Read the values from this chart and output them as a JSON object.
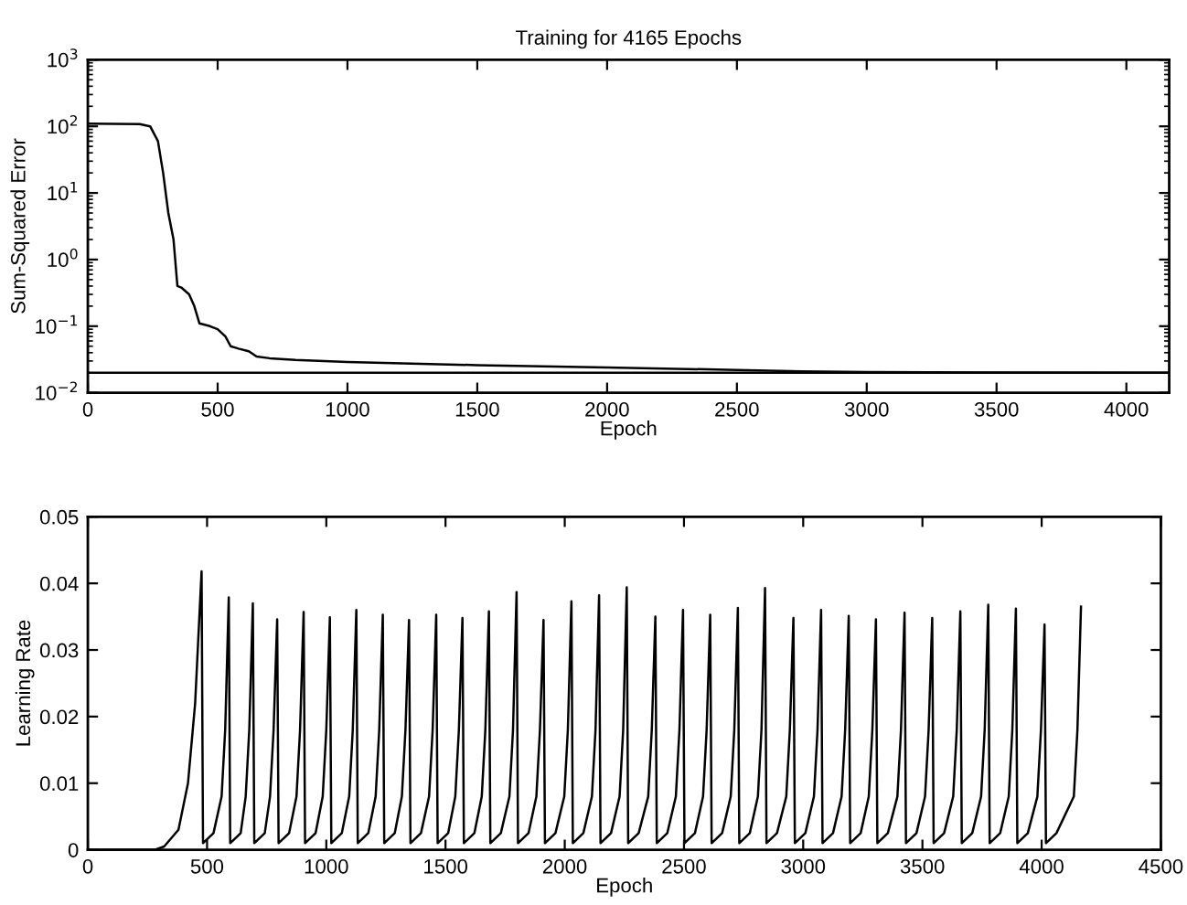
{
  "chart_data": [
    {
      "type": "line",
      "title": "Training for 4165 Epochs",
      "xlabel": "Epoch",
      "ylabel": "Sum-Squared Error",
      "log": "y",
      "grid": false,
      "xlim": [
        0,
        4165
      ],
      "xticks": [
        0,
        500,
        1000,
        1500,
        2000,
        2500,
        3000,
        3500,
        4000
      ],
      "ylim": [
        0.01,
        1000
      ],
      "yticks": [
        {
          "value": 0.01,
          "label": "10$^{−2}$"
        },
        {
          "value": 0.1,
          "label": "10$^{−1}$"
        },
        {
          "value": 1,
          "label": "10$^{0}$"
        },
        {
          "value": 10,
          "label": "10$^{1}$"
        },
        {
          "value": 100,
          "label": "10$^{2}$"
        },
        {
          "value": 1000,
          "label": "10$^{3}$"
        }
      ],
      "ref_lines": [
        {
          "axis": "y",
          "value": 0.02,
          "color": "#000000"
        }
      ],
      "series": [
        {
          "color": "#000000",
          "x": [
            0,
            200,
            240,
            270,
            290,
            310,
            330,
            345,
            360,
            390,
            410,
            430,
            470,
            500,
            530,
            550,
            580,
            620,
            650,
            700,
            800,
            1000,
            1500,
            2000,
            2500,
            2750,
            3000,
            3500,
            4165
          ],
          "values": [
            110,
            108,
            100,
            60,
            20,
            5,
            2,
            0.4,
            0.38,
            0.3,
            0.2,
            0.11,
            0.1,
            0.09,
            0.07,
            0.05,
            0.046,
            0.042,
            0.035,
            0.033,
            0.031,
            0.029,
            0.026,
            0.024,
            0.022,
            0.021,
            0.0205,
            0.0202,
            0.02
          ]
        }
      ]
    },
    {
      "type": "line",
      "xlabel": "Epoch",
      "ylabel": "Learning Rate",
      "grid": false,
      "xlim": [
        0,
        4500
      ],
      "xticks": [
        0,
        500,
        1000,
        1500,
        2000,
        2500,
        3000,
        3500,
        4000,
        4500
      ],
      "ylim": [
        0,
        0.05
      ],
      "yticks": [
        0,
        0.01,
        0.02,
        0.03,
        0.04,
        0.05
      ],
      "series": [
        {
          "color": "#000000",
          "x": [
            0,
            280,
            320,
            380,
            420,
            450,
            477,
            483,
            527,
            561,
            576,
            591,
            597,
            641,
            662,
            677,
            692,
            698,
            742,
            764,
            779,
            794,
            800,
            844,
            875,
            890,
            905,
            911,
            955,
            985,
            1000,
            1015,
            1021,
            1065,
            1096,
            1111,
            1126,
            1132,
            1176,
            1207,
            1222,
            1237,
            1243,
            1287,
            1317,
            1332,
            1347,
            1353,
            1397,
            1431,
            1446,
            1461,
            1467,
            1511,
            1541,
            1556,
            1571,
            1577,
            1621,
            1652,
            1667,
            1682,
            1688,
            1732,
            1768,
            1783,
            1798,
            1804,
            1848,
            1881,
            1896,
            1911,
            1917,
            1961,
            1998,
            2013,
            2028,
            2034,
            2078,
            2114,
            2129,
            2144,
            2150,
            2194,
            2230,
            2245,
            2260,
            2266,
            2310,
            2350,
            2365,
            2380,
            2386,
            2430,
            2466,
            2481,
            2496,
            2502,
            2546,
            2580,
            2595,
            2610,
            2616,
            2660,
            2696,
            2711,
            2726,
            2732,
            2776,
            2810,
            2825,
            2840,
            2846,
            2890,
            2929,
            2944,
            2959,
            2965,
            3009,
            3045,
            3060,
            3075,
            3081,
            3125,
            3161,
            3176,
            3191,
            3197,
            3241,
            3275,
            3290,
            3305,
            3311,
            3355,
            3395,
            3410,
            3425,
            3431,
            3475,
            3511,
            3526,
            3541,
            3547,
            3591,
            3629,
            3644,
            3659,
            3665,
            3709,
            3746,
            3761,
            3776,
            3782,
            3826,
            3862,
            3877,
            3892,
            3898,
            3942,
            3982,
            3997,
            4012,
            4018,
            4062,
            4135,
            4150,
            4165
          ],
          "values": [
            0,
            0,
            0.0005,
            0.003,
            0.01,
            0.022,
            0.0418,
            0.001,
            0.0025,
            0.008,
            0.018,
            0.0379,
            0.001,
            0.0025,
            0.008,
            0.018,
            0.037,
            0.001,
            0.0025,
            0.008,
            0.018,
            0.0346,
            0.001,
            0.0025,
            0.008,
            0.018,
            0.0357,
            0.001,
            0.0025,
            0.008,
            0.018,
            0.0349,
            0.001,
            0.0025,
            0.008,
            0.018,
            0.036,
            0.001,
            0.0025,
            0.008,
            0.018,
            0.0353,
            0.001,
            0.0025,
            0.008,
            0.018,
            0.0345,
            0.001,
            0.0025,
            0.008,
            0.018,
            0.0353,
            0.001,
            0.0025,
            0.008,
            0.018,
            0.0348,
            0.001,
            0.0025,
            0.008,
            0.018,
            0.0358,
            0.001,
            0.0025,
            0.008,
            0.018,
            0.0387,
            0.001,
            0.0025,
            0.008,
            0.018,
            0.0345,
            0.001,
            0.0025,
            0.008,
            0.018,
            0.0373,
            0.001,
            0.0025,
            0.008,
            0.018,
            0.0382,
            0.001,
            0.0025,
            0.008,
            0.018,
            0.0394,
            0.001,
            0.0025,
            0.008,
            0.018,
            0.035,
            0.001,
            0.0025,
            0.008,
            0.018,
            0.036,
            0.001,
            0.0025,
            0.008,
            0.018,
            0.0353,
            0.001,
            0.0025,
            0.008,
            0.018,
            0.0363,
            0.001,
            0.0025,
            0.008,
            0.018,
            0.0393,
            0.001,
            0.0025,
            0.008,
            0.018,
            0.0348,
            0.001,
            0.0025,
            0.008,
            0.018,
            0.036,
            0.001,
            0.0025,
            0.008,
            0.018,
            0.0351,
            0.001,
            0.0025,
            0.008,
            0.018,
            0.0346,
            0.001,
            0.0025,
            0.008,
            0.018,
            0.0356,
            0.001,
            0.0025,
            0.008,
            0.018,
            0.0348,
            0.001,
            0.0025,
            0.008,
            0.018,
            0.0358,
            0.001,
            0.0025,
            0.008,
            0.018,
            0.0368,
            0.001,
            0.0025,
            0.008,
            0.018,
            0.0362,
            0.001,
            0.0025,
            0.008,
            0.018,
            0.0338,
            0.001,
            0.0025,
            0.008,
            0.018,
            0.0365
          ]
        }
      ]
    }
  ]
}
